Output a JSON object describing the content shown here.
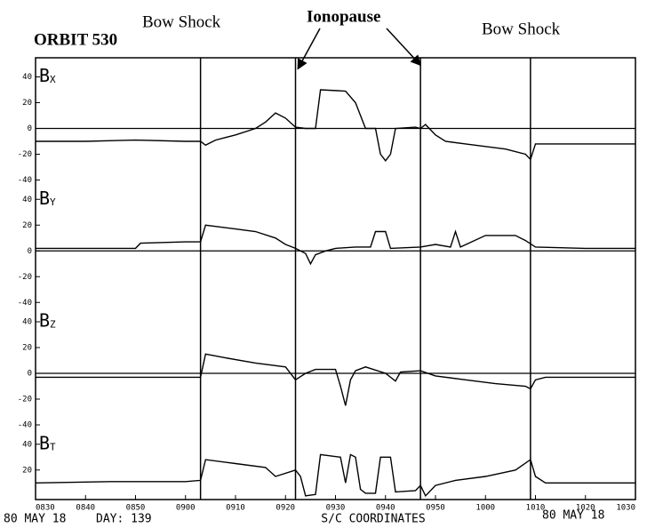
{
  "header": {
    "orbit": "ORBIT 530",
    "bow_shock_left": "Bow Shock",
    "ionopause": "Ionopause",
    "bow_shock_right": "Bow Shock"
  },
  "footer": {
    "date_left": "80 MAY 18",
    "day": "DAY: 139",
    "coords": "S/C COORDINATES",
    "date_right": "80 MAY 18"
  },
  "events": [
    33,
    52,
    77,
    99
  ],
  "chart_data": [
    {
      "type": "line",
      "name": "B",
      "subscript": "X",
      "color": "#000000",
      "xlim": [
        0,
        120
      ],
      "ylim": [
        -45,
        50
      ],
      "yticks": [
        -40,
        -20,
        0,
        20,
        40
      ],
      "zero_line": true,
      "x": [
        0,
        10,
        20,
        30,
        33,
        34,
        36,
        40,
        44,
        46,
        48,
        50,
        52,
        54,
        56,
        57,
        62,
        64,
        66,
        68,
        69,
        70,
        71,
        72,
        76,
        77,
        78,
        80,
        82,
        86,
        90,
        94,
        98,
        99,
        100,
        110,
        120
      ],
      "values": [
        -10,
        -10,
        -9,
        -10,
        -10,
        -13,
        -9,
        -5,
        0,
        5,
        12,
        8,
        1,
        0,
        0,
        30,
        29,
        20,
        0,
        0,
        -20,
        -25,
        -20,
        0,
        1,
        0,
        3,
        -5,
        -10,
        -12,
        -14,
        -16,
        -20,
        -24,
        -12,
        -12,
        -12
      ]
    },
    {
      "type": "line",
      "name": "B",
      "subscript": "Y",
      "color": "#000000",
      "xlim": [
        0,
        120
      ],
      "ylim": [
        -45,
        50
      ],
      "yticks": [
        -40,
        -20,
        0,
        20,
        40
      ],
      "zero_line": true,
      "x": [
        0,
        10,
        20,
        21,
        30,
        33,
        34,
        40,
        44,
        48,
        50,
        52,
        54,
        55,
        56,
        58,
        60,
        64,
        67,
        68,
        70,
        71,
        77,
        80,
        83,
        84,
        85,
        90,
        96,
        98,
        100,
        110,
        120
      ],
      "values": [
        2,
        2,
        2,
        6,
        7,
        7,
        20,
        17,
        15,
        10,
        5,
        2,
        -2,
        -10,
        -3,
        0,
        2,
        3,
        3,
        15,
        15,
        2,
        3,
        5,
        3,
        15,
        3,
        12,
        12,
        8,
        3,
        2,
        2
      ]
    },
    {
      "type": "line",
      "name": "B",
      "subscript": "Z",
      "color": "#000000",
      "xlim": [
        0,
        120
      ],
      "ylim": [
        -45,
        50
      ],
      "yticks": [
        -40,
        -20,
        0,
        20,
        40
      ],
      "zero_line": true,
      "x": [
        0,
        15,
        30,
        33,
        34,
        38,
        44,
        50,
        52,
        54,
        56,
        60,
        61,
        62,
        63,
        64,
        66,
        70,
        72,
        73,
        77,
        80,
        86,
        92,
        98,
        99,
        100,
        102,
        120
      ],
      "values": [
        -3,
        -3,
        -3,
        -3,
        15,
        12,
        8,
        5,
        -5,
        0,
        3,
        3,
        -10,
        -25,
        -5,
        2,
        5,
        0,
        -6,
        1,
        2,
        -2,
        -5,
        -8,
        -10,
        -12,
        -5,
        -3,
        -3
      ]
    },
    {
      "type": "line",
      "name": "B",
      "subscript": "T",
      "color": "#000000",
      "xlim": [
        0,
        120
      ],
      "ylim": [
        0,
        50
      ],
      "yticks": [
        20,
        40
      ],
      "zero_line": false,
      "x": [
        0,
        15,
        30,
        33,
        34,
        40,
        46,
        48,
        52,
        53,
        54,
        56,
        57,
        61,
        62,
        63,
        64,
        65,
        66,
        68,
        69,
        71,
        72,
        76,
        77,
        78,
        80,
        84,
        90,
        96,
        99,
        100,
        102,
        120
      ],
      "values": [
        10,
        11,
        11,
        12,
        28,
        25,
        22,
        15,
        20,
        15,
        0,
        1,
        32,
        30,
        10,
        32,
        30,
        5,
        2,
        2,
        30,
        30,
        3,
        4,
        8,
        0,
        8,
        12,
        15,
        20,
        28,
        15,
        10,
        10
      ],
      "xticks": [
        {
          "value": 0,
          "label": "0830"
        },
        {
          "value": 10,
          "label": "0840"
        },
        {
          "value": 20,
          "label": "0850"
        },
        {
          "value": 30,
          "label": "0900"
        },
        {
          "value": 40,
          "label": "0910"
        },
        {
          "value": 50,
          "label": "0920"
        },
        {
          "value": 60,
          "label": "0930"
        },
        {
          "value": 70,
          "label": "0940"
        },
        {
          "value": 80,
          "label": "0950"
        },
        {
          "value": 90,
          "label": "1000"
        },
        {
          "value": 100,
          "label": "1010"
        },
        {
          "value": 110,
          "label": "1020"
        },
        {
          "value": 120,
          "label": "1030"
        }
      ]
    }
  ]
}
